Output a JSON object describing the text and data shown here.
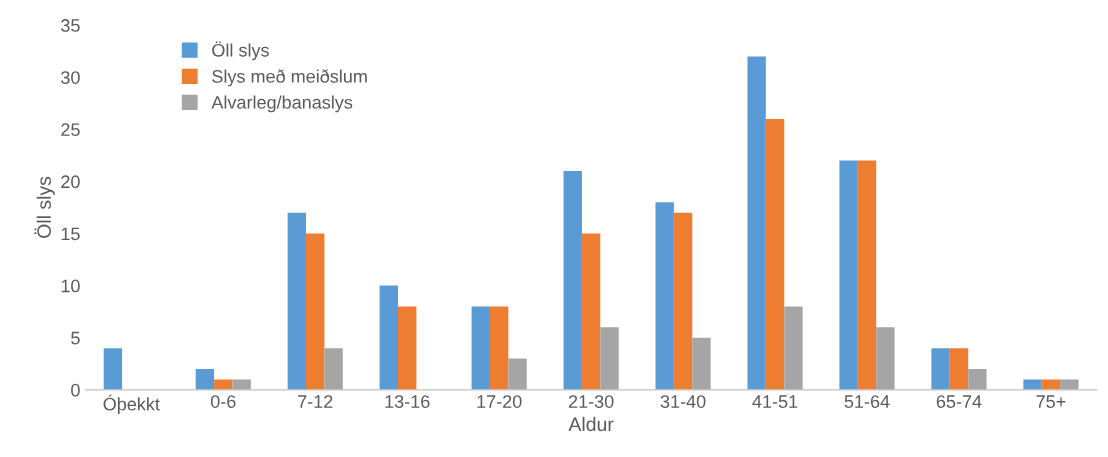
{
  "chart_data": {
    "type": "bar",
    "xlabel": "Aldur",
    "ylabel": "Öll slys",
    "categories": [
      "Óþekkt",
      "0-6",
      "7-12",
      "13-16",
      "17-20",
      "21-30",
      "31-40",
      "41-51",
      "51-64",
      "65-74",
      "75+"
    ],
    "series": [
      {
        "name": "Öll slys",
        "color": "#5b9bd5",
        "values": [
          4,
          2,
          17,
          10,
          8,
          21,
          18,
          32,
          22,
          4,
          1
        ]
      },
      {
        "name": "Slys með meiðslum",
        "color": "#ed7d31",
        "values": [
          0,
          1,
          15,
          8,
          8,
          15,
          17,
          26,
          22,
          4,
          1
        ]
      },
      {
        "name": "Alvarleg/banaslys",
        "color": "#a5a5a5",
        "values": [
          0,
          1,
          4,
          0,
          3,
          6,
          5,
          8,
          6,
          2,
          1
        ]
      }
    ],
    "ylim": [
      0,
      35
    ],
    "yticks": [
      0,
      5,
      10,
      15,
      20,
      25,
      30,
      35
    ],
    "grid": false,
    "legend": "top left"
  }
}
